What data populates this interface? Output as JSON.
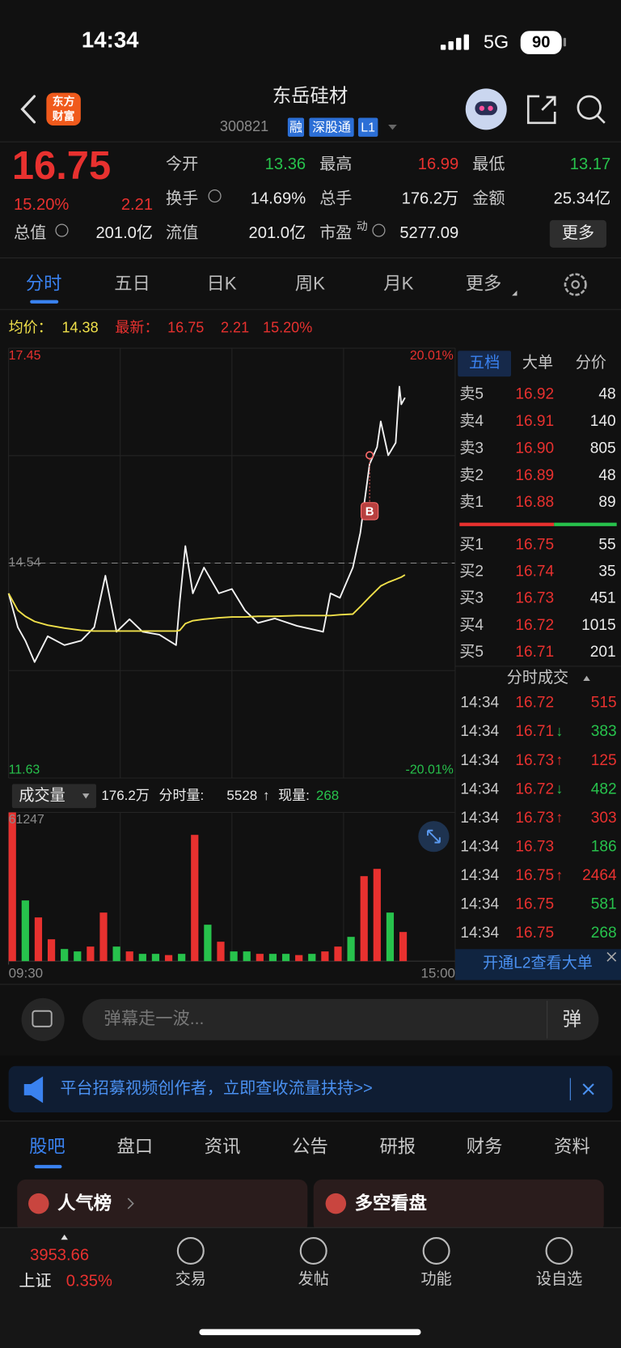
{
  "status_bar": {
    "time": "14:34",
    "network": "5G",
    "battery": "90"
  },
  "header": {
    "logo": [
      "东方",
      "财富"
    ],
    "title": "东岳硅材",
    "code": "300821",
    "tags": [
      "融",
      "深股通",
      "L1"
    ]
  },
  "quote": {
    "price": "16.75",
    "change_pct": "15.20%",
    "change": "2.21",
    "fields": [
      {
        "label": "今开",
        "value": "13.36"
      },
      {
        "label": "最高",
        "value": "16.99"
      },
      {
        "label": "最低",
        "value": "13.17"
      },
      {
        "label": "换手",
        "value": "14.69%"
      },
      {
        "label": "总手",
        "value": "176.2万"
      },
      {
        "label": "金额",
        "value": "25.34亿"
      },
      {
        "label": "总值",
        "value": "201.0亿"
      },
      {
        "label": "流值",
        "value": "201.0亿"
      },
      {
        "label": "市盈",
        "sup": "动",
        "value": "5277.09"
      }
    ],
    "more": "更多"
  },
  "tabs": [
    "分时",
    "五日",
    "日K",
    "周K",
    "月K",
    "更多"
  ],
  "chart_info": {
    "avg_label": "均价：",
    "avg": "14.38",
    "latest_label": "最新：",
    "latest": "16.75",
    "change": "2.21",
    "change_pct": "15.20%"
  },
  "chart_data": [
    {
      "type": "line",
      "x": [
        0,
        5,
        9,
        14,
        21,
        30,
        39,
        46,
        52,
        58,
        65,
        72,
        81,
        90,
        92,
        95,
        99,
        105,
        113,
        120,
        127,
        134,
        143,
        155,
        169,
        173,
        178,
        185,
        189,
        194,
        198,
        200,
        204,
        208,
        210,
        211,
        213
      ],
      "series": [
        {
          "color": "#f2f2f2",
          "values": [
            14.13,
            13.67,
            13.49,
            13.2,
            13.55,
            13.43,
            13.49,
            13.67,
            14.37,
            13.61,
            13.78,
            13.61,
            13.57,
            13.43,
            14.02,
            14.77,
            14.13,
            14.48,
            14.13,
            14.19,
            13.9,
            13.73,
            13.79,
            13.69,
            13.61,
            14.13,
            14.07,
            14.48,
            14.95,
            15.88,
            16.11,
            16.46,
            16.0,
            16.17,
            16.93,
            16.69,
            16.78
          ]
        },
        {
          "color": "#f0e04a",
          "values": [
            14.13,
            13.9,
            13.82,
            13.75,
            13.7,
            13.66,
            13.63,
            13.62,
            13.62,
            13.62,
            13.62,
            13.62,
            13.62,
            13.62,
            13.63,
            13.72,
            13.76,
            13.78,
            13.8,
            13.81,
            13.81,
            13.82,
            13.82,
            13.83,
            13.83,
            13.83,
            13.84,
            13.85,
            13.95,
            14.08,
            14.18,
            14.23,
            14.28,
            14.32,
            14.34,
            14.35,
            14.38
          ]
        }
      ],
      "xlim": [
        0,
        240
      ],
      "ylim": [
        11.63,
        17.45
      ],
      "yticks": [
        11.63,
        14.54,
        17.45
      ],
      "y2lim": [
        -20.01,
        20.01
      ],
      "y2ticks": [
        {
          "value": -20.01,
          "label": "-20.01%"
        },
        {
          "value": 20.01,
          "label": "20.01%"
        }
      ],
      "prev_close": 14.54,
      "marker": {
        "label": "B",
        "x": 194,
        "value": 16.0
      },
      "grid": true
    },
    {
      "type": "bar",
      "x": [
        0,
        7,
        14,
        21,
        28,
        35,
        42,
        49,
        56,
        63,
        70,
        77,
        84,
        91,
        98,
        105,
        112,
        119,
        126,
        133,
        140,
        147,
        154,
        161,
        168,
        175,
        182,
        189,
        196,
        203,
        210
      ],
      "values": [
        61247,
        25000,
        18000,
        9000,
        5000,
        4000,
        6000,
        20000,
        6000,
        4000,
        3000,
        3000,
        2500,
        3000,
        52000,
        15000,
        8000,
        4000,
        4000,
        3000,
        3000,
        3000,
        2500,
        3000,
        4000,
        6000,
        10000,
        35000,
        38000,
        20000,
        12000
      ],
      "colors": [
        "#e8312f",
        "#27c24c",
        "#e8312f",
        "#e8312f",
        "#27c24c",
        "#27c24c",
        "#e8312f",
        "#e8312f",
        "#27c24c",
        "#e8312f",
        "#27c24c",
        "#27c24c",
        "#e8312f",
        "#27c24c",
        "#e8312f",
        "#27c24c",
        "#e8312f",
        "#27c24c",
        "#27c24c",
        "#e8312f",
        "#27c24c",
        "#27c24c",
        "#e8312f",
        "#27c24c",
        "#e8312f",
        "#e8312f",
        "#27c24c",
        "#e8312f",
        "#e8312f",
        "#27c24c",
        "#e8312f"
      ],
      "xlim": [
        0,
        240
      ],
      "xticks": [
        {
          "value": 0,
          "label": "09:30"
        },
        {
          "value": 240,
          "label": "15:00"
        }
      ],
      "ylim": [
        0,
        61247
      ],
      "yticks": [
        61247
      ],
      "grid": true
    }
  ],
  "volume_info": {
    "selector": "成交量",
    "total": "176.2万",
    "period_label": "分时量:",
    "period": "5528",
    "arrow": "↑",
    "current_label": "现量:",
    "current": "268"
  },
  "side_panel": {
    "tabs": [
      "五档",
      "大单",
      "分价"
    ],
    "asks": [
      {
        "label": "卖5",
        "price": "16.92",
        "volume": "48"
      },
      {
        "label": "卖4",
        "price": "16.91",
        "volume": "140"
      },
      {
        "label": "卖3",
        "price": "16.90",
        "volume": "805"
      },
      {
        "label": "卖2",
        "price": "16.89",
        "volume": "48"
      },
      {
        "label": "卖1",
        "price": "16.88",
        "volume": "89"
      }
    ],
    "bids": [
      {
        "label": "买1",
        "price": "16.75",
        "volume": "55"
      },
      {
        "label": "买2",
        "price": "16.74",
        "volume": "35"
      },
      {
        "label": "买3",
        "price": "16.73",
        "volume": "451"
      },
      {
        "label": "买4",
        "price": "16.72",
        "volume": "1015"
      },
      {
        "label": "买5",
        "price": "16.71",
        "volume": "201"
      }
    ],
    "trades_title": "分时成交",
    "trades": [
      {
        "time": "14:34",
        "price": "16.72",
        "volume": "515",
        "color": "#e8312f"
      },
      {
        "time": "14:34",
        "price": "16.71",
        "arrow": "↓",
        "volume": "383",
        "color": "#27c24c"
      },
      {
        "time": "14:34",
        "price": "16.73",
        "arrow": "↑",
        "volume": "125",
        "color": "#e8312f"
      },
      {
        "time": "14:34",
        "price": "16.72",
        "arrow": "↓",
        "volume": "482",
        "color": "#27c24c"
      },
      {
        "time": "14:34",
        "price": "16.73",
        "arrow": "↑",
        "volume": "303",
        "color": "#e8312f"
      },
      {
        "time": "14:34",
        "price": "16.73",
        "volume": "186",
        "color": "#27c24c"
      },
      {
        "time": "14:34",
        "price": "16.75",
        "arrow": "↑",
        "volume": "2464",
        "color": "#e8312f"
      },
      {
        "time": "14:34",
        "price": "16.75",
        "volume": "581",
        "color": "#27c24c"
      },
      {
        "time": "14:34",
        "price": "16.75",
        "volume": "268",
        "color": "#27c24c"
      }
    ],
    "l2_prompt": "开通L2查看大单"
  },
  "comment_bar": {
    "placeholder": "弹幕走一波...",
    "button": "弹"
  },
  "banner": {
    "text": "平台招募视频创作者，立即查收流量扶持>>"
  },
  "bottom_tabs": [
    "股吧",
    "盘口",
    "资讯",
    "公告",
    "研报",
    "财务",
    "资料"
  ],
  "cards": [
    "人气榜",
    "多空看盘"
  ],
  "bottom_nav": {
    "index_value": "3953.66",
    "index_name": "上证",
    "index_change": "0.35%",
    "items": [
      "交易",
      "发帖",
      "功能",
      "设自选"
    ]
  }
}
